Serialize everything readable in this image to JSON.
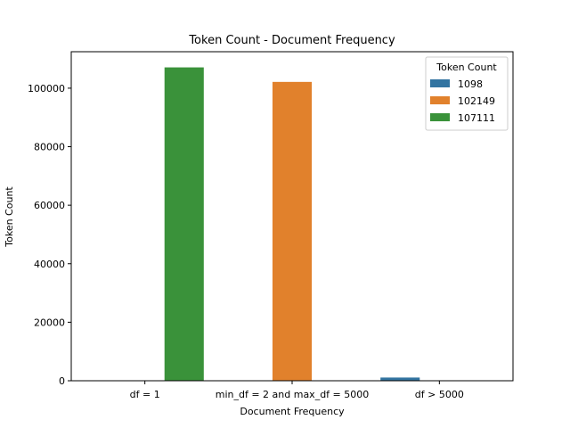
{
  "chart_data": {
    "type": "bar",
    "title": "Token Count - Document Frequency",
    "xlabel": "Document Frequency",
    "ylabel": "Token Count",
    "categories": [
      "df = 1",
      "min_df = 2 and max_df = 5000",
      "df > 5000"
    ],
    "series": [
      {
        "name": "1098",
        "color": "#3274a1",
        "values": [
          0,
          0,
          1098
        ]
      },
      {
        "name": "102149",
        "color": "#e1812c",
        "values": [
          0,
          102149,
          0
        ]
      },
      {
        "name": "107111",
        "color": "#3a923a",
        "values": [
          107111,
          0,
          0
        ]
      }
    ],
    "ylim": [
      0,
      112466
    ],
    "yticks": [
      0,
      20000,
      40000,
      60000,
      80000,
      100000
    ],
    "grid": false,
    "legend": {
      "title": "Token Count",
      "placement": "top-right"
    }
  }
}
